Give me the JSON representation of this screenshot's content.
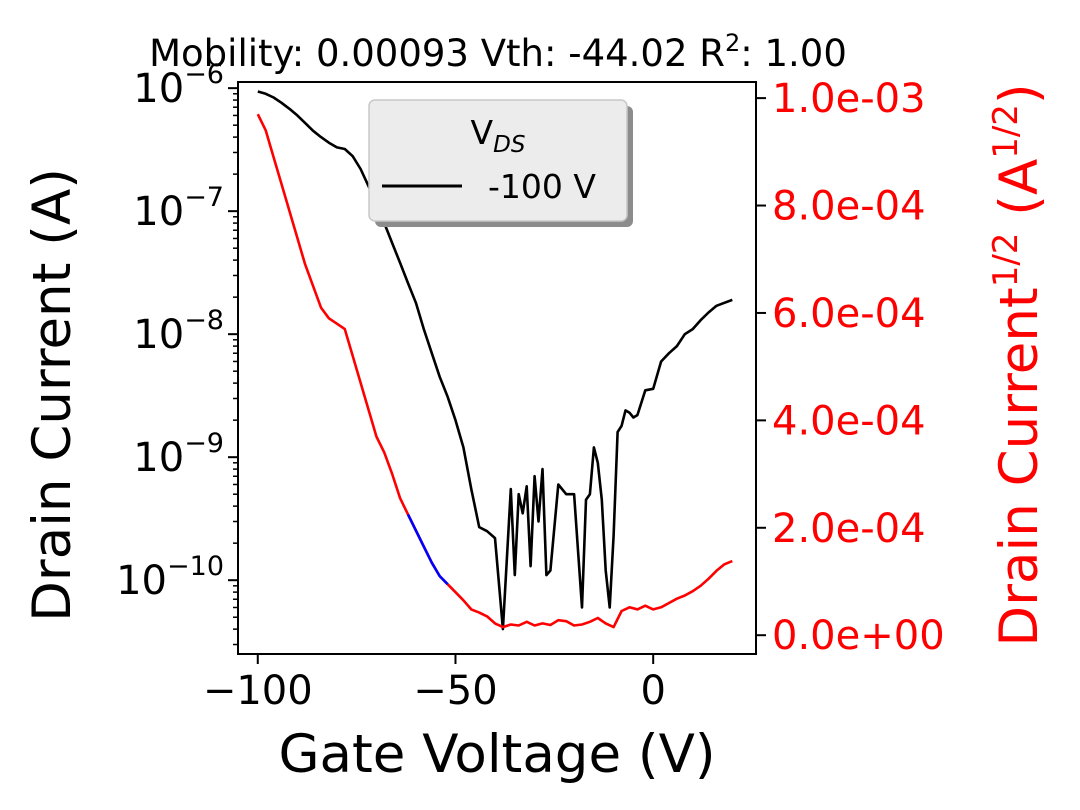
{
  "chart_data": {
    "type": "line",
    "title_parts": [
      "Mobility: 0.00093 Vth: -44.02 R",
      "2",
      ": 1.00"
    ],
    "xlabel": "Gate Voltage (V)",
    "ylabel_left": "Drain Current (A)",
    "ylabel_right_parts": [
      "Drain Current",
      "1/2",
      " (A",
      "1/2",
      ")"
    ],
    "xlim": [
      -105,
      26
    ],
    "ylim_left_log10": [
      -10.6,
      -5.95
    ],
    "ylim_right": [
      -3.5e-05,
      0.00103
    ],
    "x_ticks": [
      -100,
      -50,
      0
    ],
    "x_tick_labels": [
      "−100",
      "−50",
      "0"
    ],
    "y_left_ticks": [
      {
        "exp": -6,
        "base": "10",
        "power": "−6"
      },
      {
        "exp": -7,
        "base": "10",
        "power": "−7"
      },
      {
        "exp": -8,
        "base": "10",
        "power": "−8"
      },
      {
        "exp": -9,
        "base": "10",
        "power": "−9"
      },
      {
        "exp": -10,
        "base": "10",
        "power": "−10"
      }
    ],
    "y_right_ticks": [
      {
        "value": 0.0,
        "label": "0.0e+00"
      },
      {
        "value": 0.0002,
        "label": "2.0e-04"
      },
      {
        "value": 0.0004,
        "label": "4.0e-04"
      },
      {
        "value": 0.0006,
        "label": "6.0e-04"
      },
      {
        "value": 0.0008,
        "label": "8.0e-04"
      },
      {
        "value": 0.001,
        "label": "1.0e-03"
      }
    ],
    "legend": {
      "title_base": "V",
      "title_sub": "DS",
      "entries": [
        "-100 V"
      ],
      "placement": "upper-center"
    },
    "colors": {
      "drain_current": "#000000",
      "sqrt_current": "#ff0000",
      "fit_region": "#0000ff",
      "right_axis": "#ff0000"
    },
    "series": [
      {
        "name": "-100 V",
        "axis": "left-log",
        "x": [
          -100,
          -98,
          -96,
          -94,
          -92,
          -90,
          -88,
          -86,
          -84,
          -82,
          -80,
          -78,
          -76,
          -74,
          -72,
          -70,
          -68,
          -66,
          -64,
          -62,
          -60,
          -58,
          -56,
          -54,
          -52,
          -50,
          -48,
          -46,
          -44,
          -42,
          -40,
          -38,
          -36,
          -35,
          -34,
          -33,
          -32,
          -31,
          -30,
          -29,
          -28,
          -27,
          -26,
          -24,
          -22,
          -20,
          -19,
          -18,
          -17,
          -16,
          -15,
          -14,
          -13,
          -12,
          -11,
          -10,
          -9,
          -8,
          -7,
          -6,
          -5,
          -4,
          -2,
          0,
          2,
          4,
          6,
          8,
          10,
          12,
          14,
          16,
          18,
          20
        ],
        "y": [
          9.4e-07,
          9e-07,
          8.4e-07,
          7.6e-07,
          6.8e-07,
          6e-07,
          5.2e-07,
          4.5e-07,
          4e-07,
          3.6e-07,
          3.3e-07,
          3.2e-07,
          2.8e-07,
          2.2e-07,
          1.6e-07,
          1.2e-07,
          8e-08,
          5.5e-08,
          3.8e-08,
          2.6e-08,
          1.8e-08,
          1.1e-08,
          7e-09,
          4.5e-09,
          3.1e-09,
          2e-09,
          1.2e-09,
          5.5e-10,
          2.7e-10,
          2.5e-10,
          2.2e-10,
          4e-11,
          5.5e-10,
          1.1e-10,
          5e-10,
          3.5e-10,
          5.8e-10,
          1.3e-10,
          7e-10,
          3e-10,
          8e-10,
          1.1e-10,
          1.2e-10,
          6e-10,
          5e-10,
          5e-10,
          1.7e-10,
          6e-11,
          4.5e-10,
          5e-10,
          1.2e-09,
          9e-10,
          4.5e-10,
          1.2e-10,
          6e-11,
          2.3e-10,
          1.6e-09,
          1.8e-09,
          2.4e-09,
          2.3e-09,
          2.1e-09,
          2.2e-09,
          3.5e-09,
          3.6e-09,
          6e-09,
          7e-09,
          8e-09,
          1e-08,
          1.1e-08,
          1.3e-08,
          1.5e-08,
          1.7e-08,
          1.8e-08,
          1.9e-08
        ]
      },
      {
        "name": "",
        "axis": "right",
        "x": [
          -100,
          -98,
          -96,
          -94,
          -92,
          -90,
          -88,
          -86,
          -84,
          -82,
          -80,
          -78,
          -76,
          -74,
          -72,
          -70,
          -68,
          -66,
          -64,
          -62,
          -60,
          -58,
          -56,
          -54,
          -52,
          -50,
          -48,
          -46,
          -44,
          -42,
          -40,
          -38,
          -36,
          -34,
          -32,
          -30,
          -28,
          -26,
          -24,
          -22,
          -20,
          -18,
          -16,
          -14,
          -12,
          -10,
          -8,
          -6,
          -4,
          -2,
          0,
          2,
          4,
          6,
          8,
          10,
          12,
          14,
          16,
          18,
          20
        ],
        "y": [
          0.00097,
          0.00094,
          0.00089,
          0.00084,
          0.00079,
          0.00074,
          0.00069,
          0.00065,
          0.00061,
          0.00059,
          0.00058,
          0.00057,
          0.00052,
          0.00047,
          0.00042,
          0.00037,
          0.00034,
          0.0003,
          0.000255,
          0.000225,
          0.000195,
          0.000165,
          0.000135,
          0.00011,
          9.5e-05,
          8e-05,
          6.5e-05,
          4.8e-05,
          4.2e-05,
          3.5e-05,
          2.2e-05,
          1.5e-05,
          2e-05,
          1.8e-05,
          2.5e-05,
          1.8e-05,
          2.2e-05,
          1.9e-05,
          2.8e-05,
          2.6e-05,
          1.8e-05,
          2e-05,
          2.5e-05,
          3.2e-05,
          2.2e-05,
          1.5e-05,
          4.5e-05,
          5.2e-05,
          4.8e-05,
          5.5e-05,
          4.8e-05,
          5.2e-05,
          6e-05,
          6.8e-05,
          7.4e-05,
          8.2e-05,
          9.2e-05,
          0.000105,
          0.00012,
          0.000132,
          0.000138
        ]
      },
      {
        "name": "",
        "axis": "right",
        "x": [
          -62,
          -60,
          -58,
          -56,
          -54,
          -52
        ],
        "y": [
          0.000225,
          0.000195,
          0.000165,
          0.000135,
          0.00011,
          9.5e-05
        ]
      }
    ]
  }
}
